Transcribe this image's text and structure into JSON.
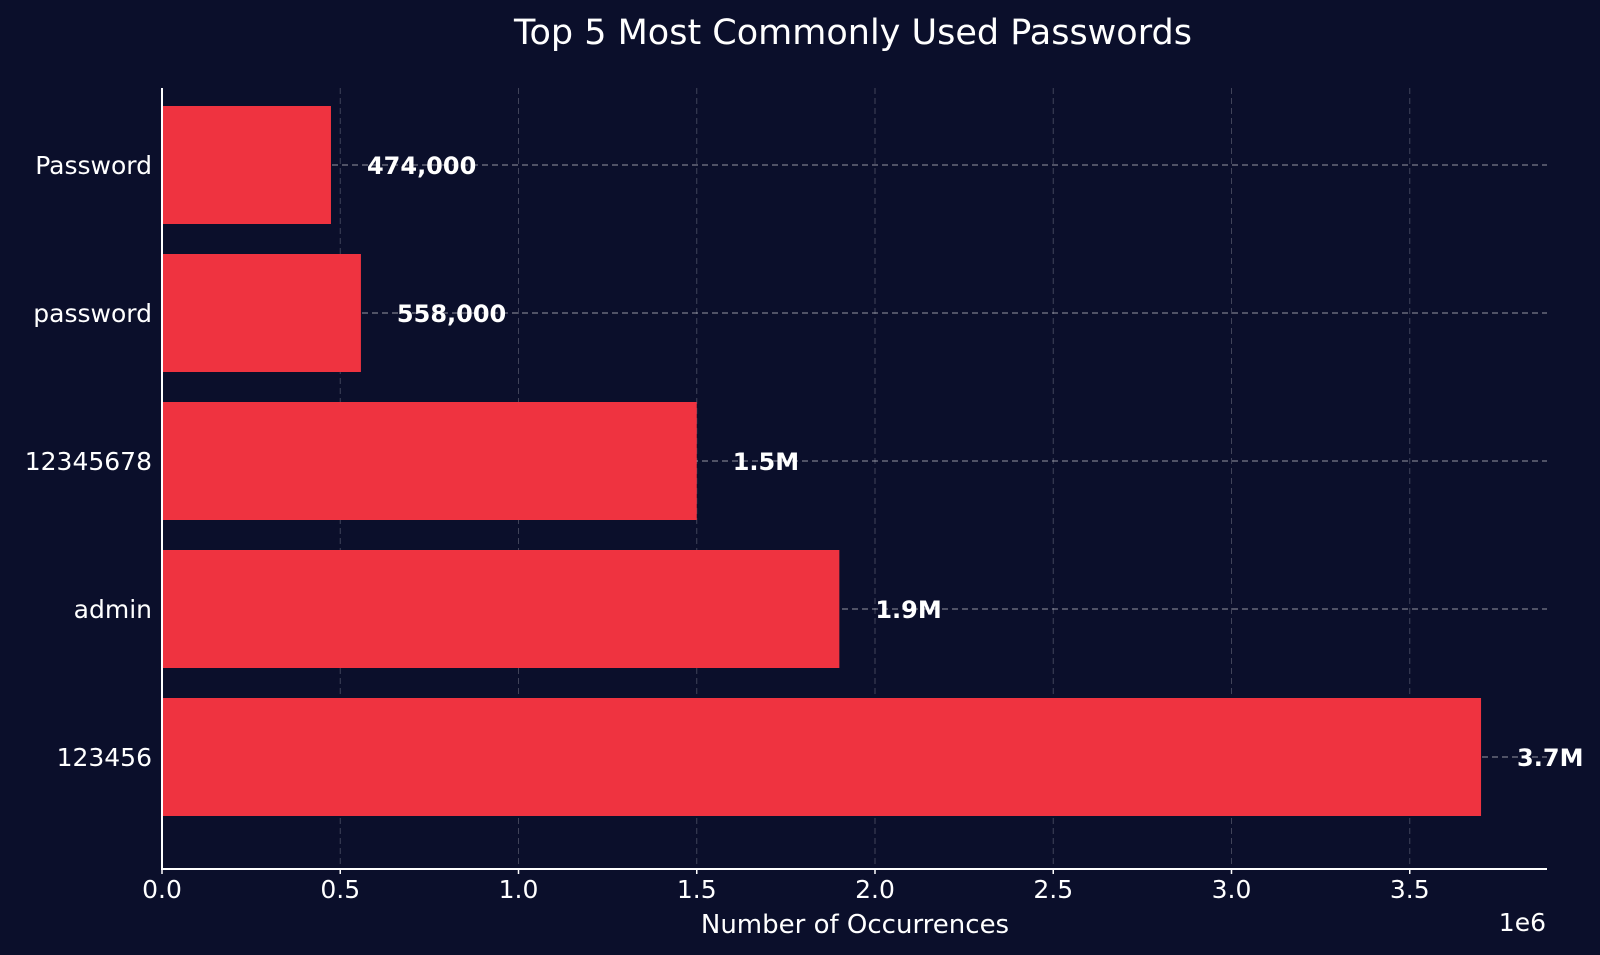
{
  "chart_data": {
    "type": "bar",
    "orientation": "horizontal",
    "title": "Top 5 Most Commonly Used Passwords",
    "xlabel": "Number of Occurrences",
    "ylabel": "",
    "x_offset_label": "1e6",
    "categories": [
      "Password",
      "password",
      "12345678",
      "admin",
      "123456"
    ],
    "values": [
      474000,
      558000,
      1500000,
      1900000,
      3700000
    ],
    "value_labels": [
      "474,000",
      "558,000",
      "1.5M",
      "1.9M",
      "3.7M"
    ],
    "xlim": [
      0,
      3885000
    ],
    "xticks": [
      0,
      500000,
      1000000,
      1500000,
      2000000,
      2500000,
      3000000,
      3500000
    ],
    "xtick_labels": [
      "0.0",
      "0.5",
      "1.0",
      "1.5",
      "2.0",
      "2.5",
      "3.0",
      "3.5"
    ],
    "grid": true,
    "legend": "none",
    "colors": {
      "background": "#0b0f2b",
      "bar": "#ef3340",
      "text": "#ffffff"
    }
  }
}
